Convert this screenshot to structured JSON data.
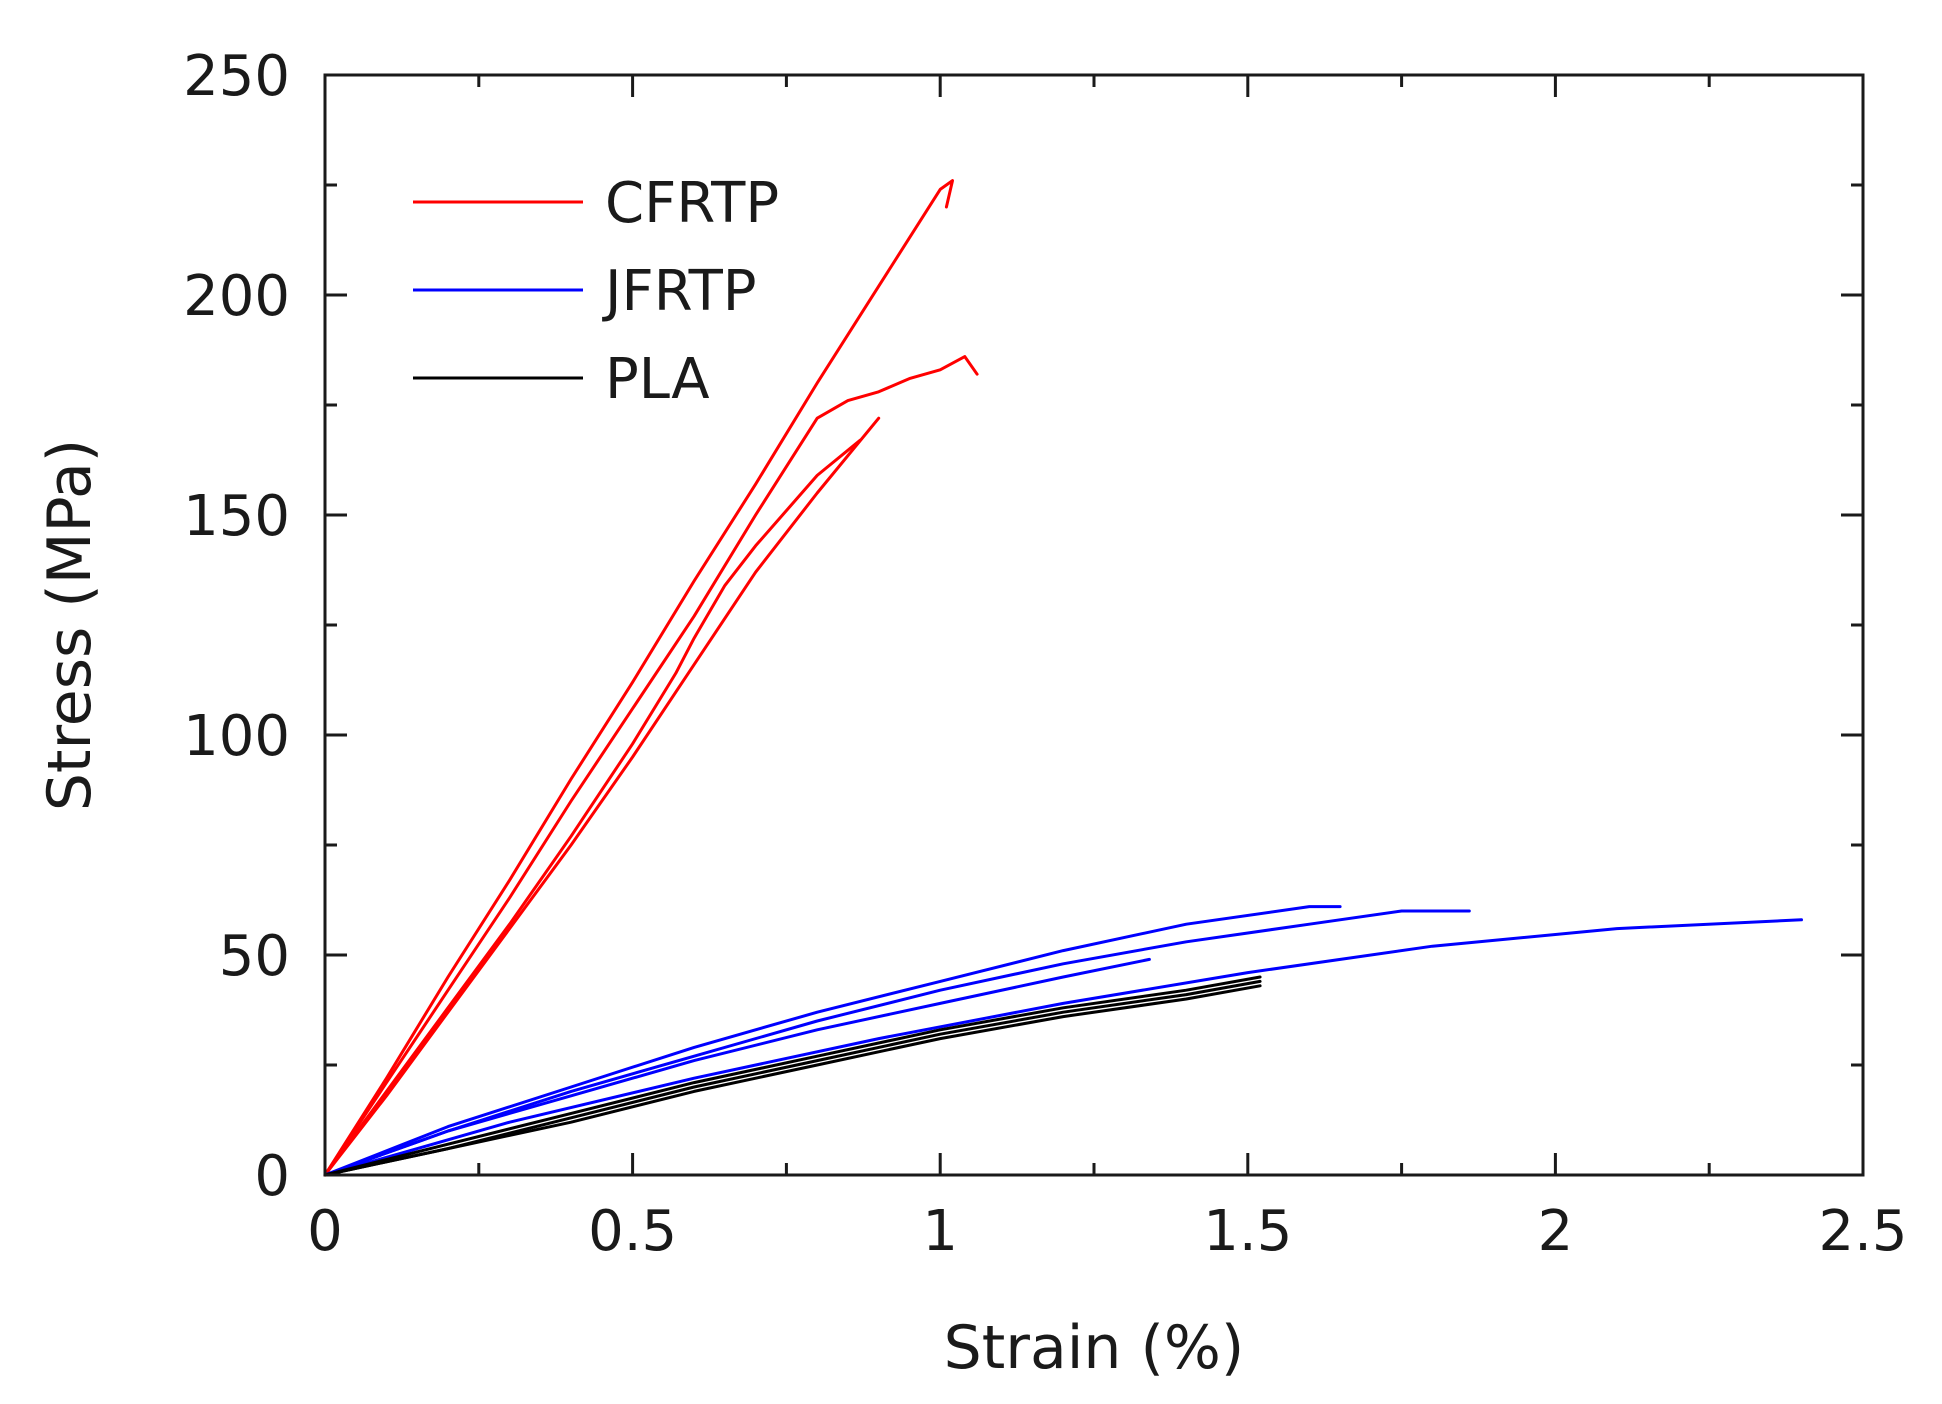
{
  "chart_data": {
    "type": "line",
    "title": "",
    "xlabel": "Strain (%)",
    "ylabel": "Stress (MPa)",
    "xlim": [
      0,
      2.5
    ],
    "ylim": [
      0,
      250
    ],
    "x_ticks": [
      "0",
      "0.5",
      "1",
      "1.5",
      "2",
      "2.5"
    ],
    "y_ticks": [
      "0",
      "50",
      "100",
      "150",
      "200",
      "250"
    ],
    "x_tick_values": [
      0,
      0.5,
      1,
      1.5,
      2,
      2.5
    ],
    "y_tick_values": [
      0,
      50,
      100,
      150,
      200,
      250
    ],
    "x_minor_step": 0.25,
    "y_minor_step": 25,
    "grid": false,
    "legend_position": "top-left",
    "legend": [
      {
        "label": "CFRTP",
        "color": "#ff0000"
      },
      {
        "label": "JFRTP",
        "color": "#0000ff"
      },
      {
        "label": "PLA",
        "color": "#000000"
      }
    ],
    "series": [
      {
        "name": "CFRTP",
        "color": "#ff0000",
        "x": [
          0,
          0.1,
          0.2,
          0.3,
          0.4,
          0.5,
          0.6,
          0.7,
          0.8,
          0.9,
          1.0,
          1.02,
          1.01
        ],
        "y": [
          0,
          22,
          45,
          67,
          90,
          112,
          135,
          157,
          180,
          202,
          224,
          226,
          220
        ]
      },
      {
        "name": "CFRTP",
        "color": "#ff0000",
        "x": [
          0,
          0.1,
          0.2,
          0.3,
          0.4,
          0.5,
          0.6,
          0.7,
          0.8,
          0.85,
          0.9,
          0.95,
          1.0,
          1.04,
          1.06
        ],
        "y": [
          0,
          21,
          42,
          63,
          85,
          106,
          127,
          150,
          172,
          176,
          178,
          181,
          183,
          186,
          182
        ]
      },
      {
        "name": "CFRTP",
        "color": "#ff0000",
        "x": [
          0,
          0.1,
          0.2,
          0.3,
          0.4,
          0.5,
          0.57,
          0.6,
          0.65,
          0.7,
          0.8,
          0.87
        ],
        "y": [
          0,
          19,
          38,
          57,
          77,
          98,
          114,
          122,
          134,
          143,
          159,
          167
        ]
      },
      {
        "name": "CFRTP",
        "color": "#ff0000",
        "x": [
          0,
          0.1,
          0.2,
          0.3,
          0.4,
          0.5,
          0.6,
          0.7,
          0.8,
          0.9
        ],
        "y": [
          0,
          18,
          37,
          56,
          75,
          95,
          116,
          137,
          155,
          172
        ]
      },
      {
        "name": "JFRTP",
        "color": "#0000ff",
        "x": [
          0,
          0.2,
          0.4,
          0.6,
          0.8,
          1.0,
          1.2,
          1.4,
          1.6,
          1.65
        ],
        "y": [
          0,
          11,
          20,
          29,
          37,
          44,
          51,
          57,
          61,
          61
        ]
      },
      {
        "name": "JFRTP",
        "color": "#0000ff",
        "x": [
          0,
          0.2,
          0.4,
          0.6,
          0.8,
          1.0,
          1.2,
          1.4,
          1.6,
          1.75,
          1.86
        ],
        "y": [
          0,
          10,
          19,
          27,
          35,
          42,
          48,
          53,
          57,
          60,
          60
        ]
      },
      {
        "name": "JFRTP",
        "color": "#0000ff",
        "x": [
          0,
          0.3,
          0.6,
          0.9,
          1.2,
          1.5,
          1.8,
          2.1,
          2.4
        ],
        "y": [
          0,
          12,
          22,
          31,
          39,
          46,
          52,
          56,
          58
        ]
      },
      {
        "name": "JFRTP",
        "color": "#0000ff",
        "x": [
          0,
          0.2,
          0.4,
          0.6,
          0.8,
          1.0,
          1.2,
          1.34
        ],
        "y": [
          0,
          10,
          18,
          26,
          33,
          39,
          45,
          49
        ]
      },
      {
        "name": "PLA",
        "color": "#000000",
        "x": [
          0,
          0.2,
          0.4,
          0.6,
          0.8,
          1.0,
          1.2,
          1.4,
          1.52
        ],
        "y": [
          0,
          7,
          14,
          21,
          27,
          33,
          38,
          42,
          45
        ]
      },
      {
        "name": "PLA",
        "color": "#000000",
        "x": [
          0,
          0.2,
          0.4,
          0.6,
          0.8,
          1.0,
          1.2,
          1.4,
          1.52
        ],
        "y": [
          0,
          6,
          13,
          20,
          26,
          32,
          37,
          41,
          44
        ]
      },
      {
        "name": "PLA",
        "color": "#000000",
        "x": [
          0,
          0.2,
          0.4,
          0.6,
          0.8,
          1.0,
          1.2,
          1.4,
          1.52
        ],
        "y": [
          0,
          6,
          12,
          19,
          25,
          31,
          36,
          40,
          43
        ]
      }
    ]
  }
}
